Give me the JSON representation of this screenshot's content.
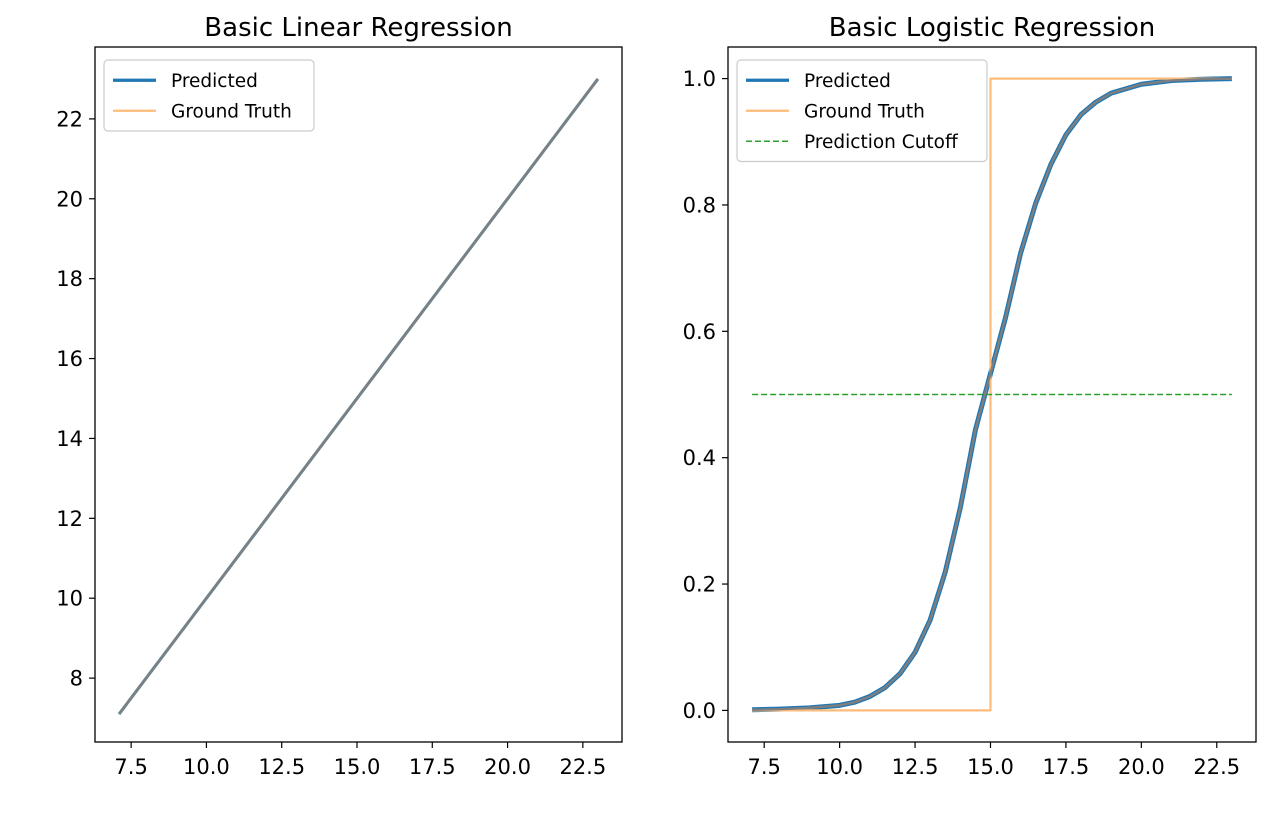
{
  "chart_data": [
    {
      "type": "line",
      "title": "Basic Linear Regression",
      "xlabel": "",
      "ylabel": "",
      "xlim": [
        6.3,
        23.8
      ],
      "ylim": [
        6.4,
        23.8
      ],
      "x_ticks": [
        7.5,
        10.0,
        12.5,
        15.0,
        17.5,
        20.0,
        22.5
      ],
      "x_tick_labels": [
        "7.5",
        "10.0",
        "12.5",
        "15.0",
        "17.5",
        "20.0",
        "22.5"
      ],
      "y_ticks": [
        8,
        10,
        12,
        14,
        16,
        18,
        20,
        22
      ],
      "y_tick_labels": [
        "8",
        "10",
        "12",
        "14",
        "16",
        "18",
        "20",
        "22"
      ],
      "grid": false,
      "legend_position": "upper-left",
      "legend": [
        "Predicted",
        "Ground Truth"
      ],
      "series": [
        {
          "name": "Predicted",
          "kind": "line",
          "color": "#1f77b4",
          "x": [
            7.1,
            23.0
          ],
          "y": [
            7.1,
            23.0
          ]
        },
        {
          "name": "Ground Truth",
          "kind": "line",
          "color": "#ffbb78",
          "x": [
            7.1,
            23.0
          ],
          "y": [
            7.1,
            23.0
          ]
        }
      ],
      "overlap_color": "#7f7f7f"
    },
    {
      "type": "line",
      "title": "Basic Logistic Regression",
      "xlabel": "",
      "ylabel": "",
      "xlim": [
        6.3,
        23.8
      ],
      "ylim": [
        -0.05,
        1.05
      ],
      "x_ticks": [
        7.5,
        10.0,
        12.5,
        15.0,
        17.5,
        20.0,
        22.5
      ],
      "x_tick_labels": [
        "7.5",
        "10.0",
        "12.5",
        "15.0",
        "17.5",
        "20.0",
        "22.5"
      ],
      "y_ticks": [
        0.0,
        0.2,
        0.4,
        0.6,
        0.8,
        1.0
      ],
      "y_tick_labels": [
        "0.0",
        "0.2",
        "0.4",
        "0.6",
        "0.8",
        "1.0"
      ],
      "grid": false,
      "legend_position": "upper-left",
      "legend": [
        "Predicted",
        "Ground Truth",
        "Prediction Cutoff"
      ],
      "series": [
        {
          "name": "Predicted",
          "kind": "line",
          "color": "#1f77b4",
          "x": [
            7.1,
            8.0,
            9.0,
            10.0,
            10.5,
            11.0,
            11.5,
            12.0,
            12.5,
            13.0,
            13.5,
            14.0,
            14.5,
            15.0,
            15.5,
            16.0,
            16.5,
            17.0,
            17.5,
            18.0,
            18.5,
            19.0,
            20.0,
            21.0,
            22.0,
            23.0
          ],
          "y": [
            0.001,
            0.002,
            0.004,
            0.008,
            0.013,
            0.022,
            0.036,
            0.058,
            0.092,
            0.143,
            0.219,
            0.321,
            0.444,
            0.533,
            0.622,
            0.724,
            0.803,
            0.864,
            0.911,
            0.943,
            0.963,
            0.977,
            0.991,
            0.997,
            0.999,
            1.0
          ]
        },
        {
          "name": "Ground Truth",
          "kind": "line",
          "color": "#ffbb78",
          "x": [
            7.1,
            15.0,
            15.0,
            23.0
          ],
          "y": [
            0.0,
            0.0,
            1.0,
            1.0
          ]
        },
        {
          "name": "Prediction Cutoff",
          "kind": "dashed",
          "color": "#2ca02c",
          "x": [
            7.1,
            23.0
          ],
          "y": [
            0.5,
            0.5
          ]
        }
      ],
      "overlap_color": "#7f7f7f"
    }
  ]
}
